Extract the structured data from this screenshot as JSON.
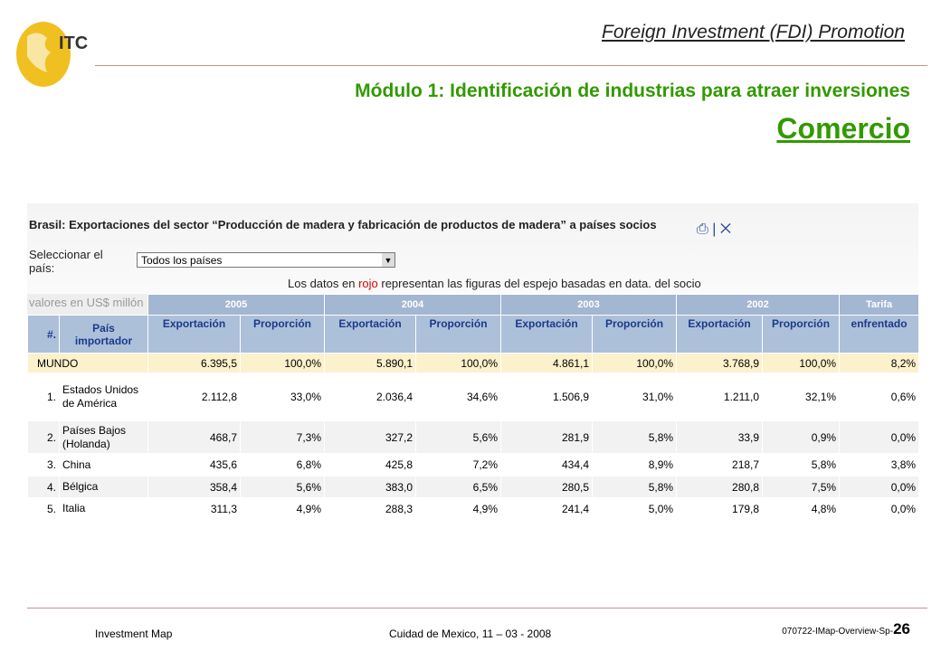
{
  "header": {
    "logo": "ITC",
    "title": "Foreign Investment (FDI) Promotion"
  },
  "module_title": "Módulo 1: Identificación de industrias para atraer inversiones",
  "subtitle": "Comercio",
  "panel": {
    "title": "Brasil: Exportaciones del sector “Producción de madera y fabricación de productos de madera” a países socios",
    "select_label": "Seleccionar el país:",
    "select_value": "Todos los países",
    "note": [
      "Los datos en ",
      "rojo",
      " representan las figuras del espejo basadas en data. del socio"
    ],
    "units": "valores en US$ millón"
  },
  "table": {
    "groups": [
      "2005",
      "2004",
      "2003",
      "2002",
      "Tarifa"
    ],
    "columns": [
      "#.",
      "País importador",
      "Exportación",
      "Proporción",
      "Exportación",
      "Proporción",
      "Exportación",
      "Proporción",
      "Exportación",
      "Proporción",
      "enfrentado"
    ],
    "rows": [
      {
        "country": "MUNDO",
        "cells": [
          "6.395,5",
          "100,0%",
          "5.890,1",
          "100,0%",
          "4.861,1",
          "100,0%",
          "3.768,9",
          "100,0%",
          "8,2%"
        ]
      },
      {
        "rank": "1.",
        "country": "Estados Unidos de América",
        "cells": [
          "2.112,8",
          "33,0%",
          "2.036,4",
          "34,6%",
          "1.506,9",
          "31,0%",
          "1.211,0",
          "32,1%",
          "0,6%"
        ]
      },
      {
        "rank": "2.",
        "country": "Países Bajos (Holanda)",
        "cells": [
          "468,7",
          "7,3%",
          "327,2",
          "5,6%",
          "281,9",
          "5,8%",
          "33,9",
          "0,9%",
          "0,0%"
        ]
      },
      {
        "rank": "3.",
        "country": "China",
        "cells": [
          "435,6",
          "6,8%",
          "425,8",
          "7,2%",
          "434,4",
          "8,9%",
          "218,7",
          "5,8%",
          "3,8%"
        ]
      },
      {
        "rank": "4.",
        "country": "Bélgica",
        "cells": [
          "358,4",
          "5,6%",
          "383,0",
          "6,5%",
          "280,5",
          "5,8%",
          "280,8",
          "7,5%",
          "0,0%"
        ]
      },
      {
        "rank": "5.",
        "country": "Italia",
        "cells": [
          "311,3",
          "4,9%",
          "288,3",
          "4,9%",
          "241,4",
          "5,0%",
          "179,8",
          "4,8%",
          "0,0%"
        ]
      }
    ]
  },
  "footer": {
    "left": "Investment Map",
    "center": "Cuidad de Mexico, 11 – 03 - 2008",
    "code": "070722-IMap-Overview-Sp-",
    "page": "26"
  }
}
